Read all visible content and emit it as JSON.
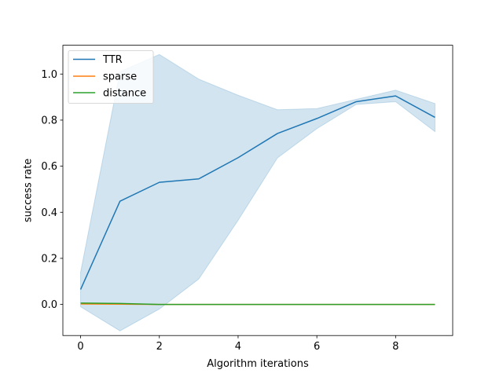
{
  "chart_data": {
    "type": "line",
    "title": "",
    "xlabel": "Algorithm iterations",
    "ylabel": "success rate",
    "xlim": [
      -0.45,
      9.45
    ],
    "ylim": [
      -0.135,
      1.125
    ],
    "xticks": [
      0,
      2,
      4,
      6,
      8
    ],
    "xtick_labels": [
      "0",
      "2",
      "4",
      "6",
      "8"
    ],
    "yticks": [
      0.0,
      0.2,
      0.4,
      0.6,
      0.8,
      1.0
    ],
    "ytick_labels": [
      "0.0",
      "0.2",
      "0.4",
      "0.6",
      "0.8",
      "1.0"
    ],
    "grid": false,
    "legend_position": "top-left",
    "x": [
      0,
      1,
      2,
      3,
      4,
      5,
      6,
      7,
      8,
      9
    ],
    "series": [
      {
        "name": "TTR",
        "color": "#1f77b4",
        "values": [
          0.065,
          0.448,
          0.53,
          0.545,
          0.637,
          0.742,
          0.807,
          0.88,
          0.905,
          0.812
        ],
        "band_lower": [
          -0.01,
          -0.115,
          -0.02,
          0.11,
          0.365,
          0.636,
          0.763,
          0.868,
          0.88,
          0.75
        ],
        "band_upper": [
          0.14,
          1.01,
          1.085,
          0.978,
          0.908,
          0.845,
          0.85,
          0.89,
          0.93,
          0.872
        ],
        "band_color": "#1f77b4"
      },
      {
        "name": "sparse",
        "color": "#ff7f0e",
        "values": [
          0.002,
          0.001,
          0.0,
          0.0,
          0.0,
          0.0,
          0.0,
          0.0,
          0.0,
          0.0
        ]
      },
      {
        "name": "distance",
        "color": "#2ca02c",
        "values": [
          0.006,
          0.004,
          0.0,
          0.0,
          0.0,
          0.0,
          0.0,
          0.0,
          0.0,
          0.0
        ]
      }
    ]
  }
}
